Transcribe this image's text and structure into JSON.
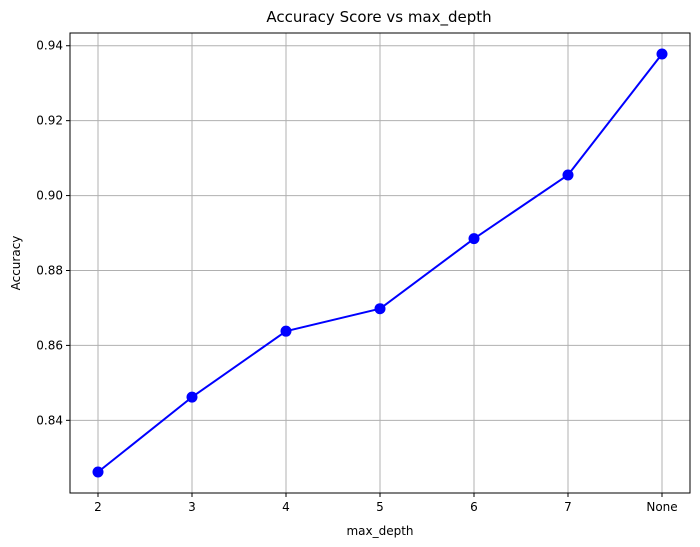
{
  "chart_data": {
    "type": "line",
    "title": "Accuracy Score vs max_depth",
    "xlabel": "max_depth",
    "ylabel": "Accuracy",
    "categories": [
      "2",
      "3",
      "4",
      "5",
      "6",
      "7",
      "None"
    ],
    "series": [
      {
        "values": [
          0.8262,
          0.8462,
          0.8638,
          0.8698,
          0.8885,
          0.9055,
          0.9378
        ],
        "color": "#0000ff",
        "marker": "circle"
      }
    ],
    "yticks": [
      "0.84",
      "0.86",
      "0.88",
      "0.90",
      "0.92",
      "0.94"
    ],
    "ytick_values": [
      0.84,
      0.86,
      0.88,
      0.9,
      0.92,
      0.94
    ],
    "ylim": [
      0.8206,
      0.9434
    ],
    "grid": true,
    "legend": "none"
  }
}
